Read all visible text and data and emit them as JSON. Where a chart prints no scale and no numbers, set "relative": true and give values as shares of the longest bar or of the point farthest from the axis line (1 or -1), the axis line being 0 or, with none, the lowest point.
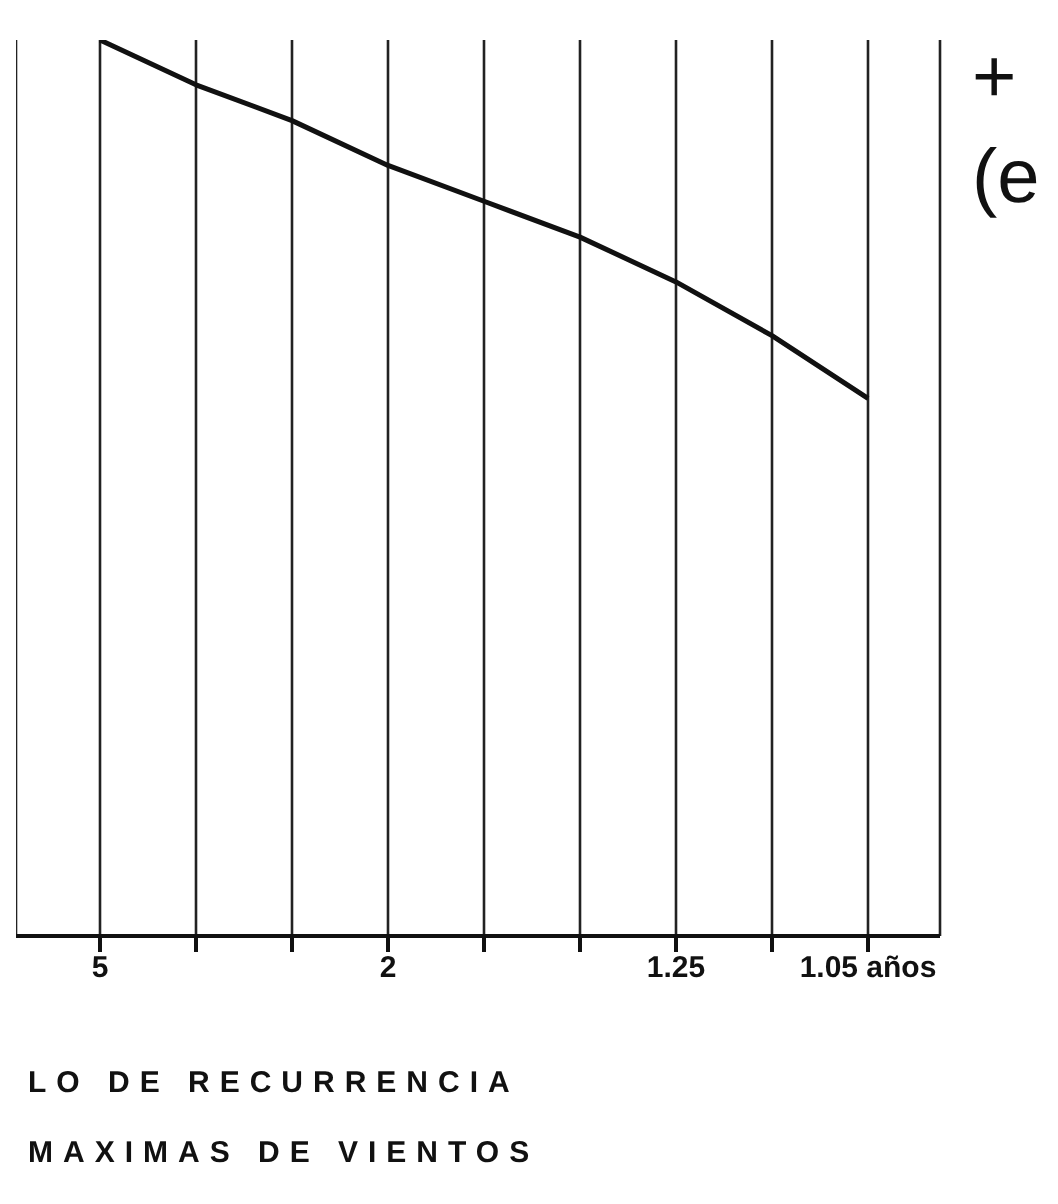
{
  "chart_data": {
    "type": "line",
    "relative": true,
    "xlabel": "LO DE RECURRENCIA",
    "categories": [
      "5",
      null,
      null,
      "2",
      null,
      null,
      "1.25",
      null,
      "1.05 años"
    ],
    "series": [
      {
        "color": "#111111",
        "values": [
          1,
          0.95,
          0.91,
          0.86,
          0.82,
          0.78,
          0.73,
          0.67,
          0.6
        ]
      }
    ],
    "grid": "x",
    "marker": "none",
    "line_style": "solid",
    "annotations": [
      "MAXIMAS DE VIENTOS",
      "+",
      "(e"
    ]
  }
}
